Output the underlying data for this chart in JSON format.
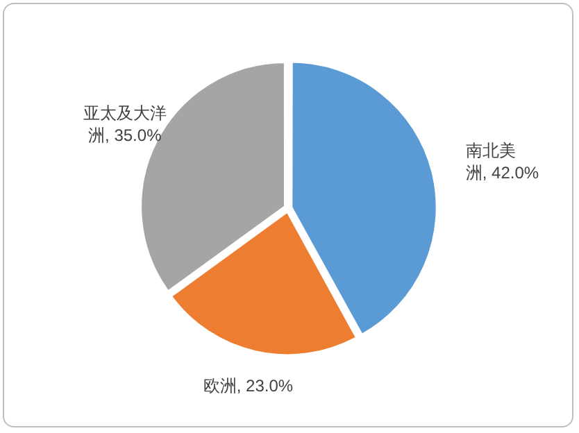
{
  "chart_data": {
    "type": "pie",
    "categories": [
      "南北美洲",
      "欧洲",
      "亚太及大洋洲"
    ],
    "values": [
      42,
      23,
      35
    ],
    "colors": [
      "#5b9bd5",
      "#ed7d31",
      "#a5a5a5"
    ],
    "value_labels": [
      "42.0%",
      "23.0%",
      "35.0%"
    ],
    "legend": false
  }
}
